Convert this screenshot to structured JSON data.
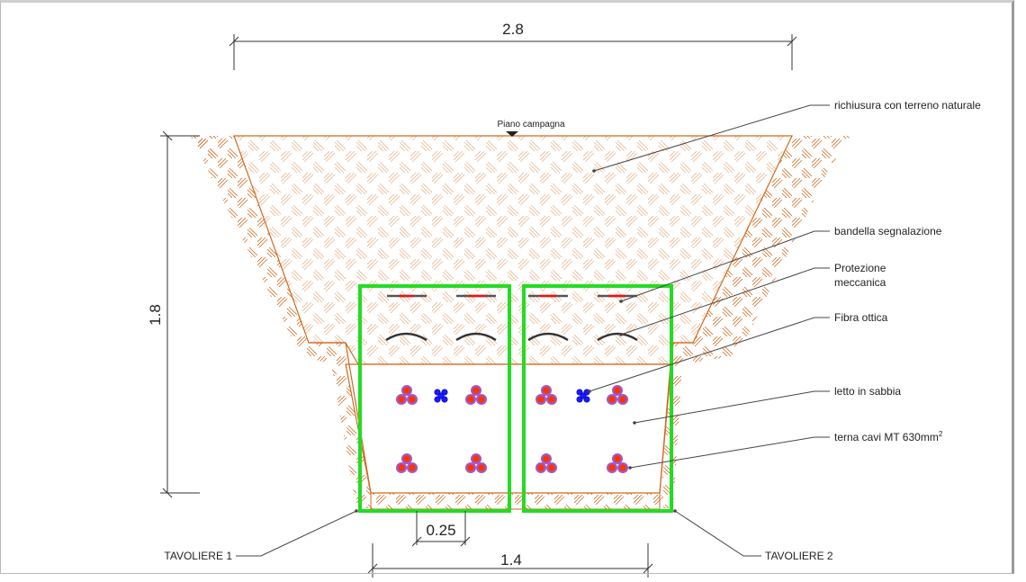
{
  "dimensions": {
    "top_width": "2.8",
    "height": "1.8",
    "bottom_width": "1.4",
    "gap": "0.25"
  },
  "ground_label": "Piano campagna",
  "callouts": {
    "backfill": "richiusura con terreno naturale",
    "warning_tape": "bandella segnalazione",
    "mechanical_protection_line1": "Protezione",
    "mechanical_protection_line2": "meccanica",
    "optical_fiber": "Fibra ottica",
    "sand_bed": "letto in sabbia",
    "cable_triad": "terna cavi MT 630mm",
    "cable_triad_sup": "2"
  },
  "trays": {
    "left": "TAVOLIERE 1",
    "right": "TAVOLIERE 2"
  },
  "colors": {
    "soil": "#d2691e",
    "tray_outline": "#22dd22",
    "cable_core": "#ff3300",
    "cable_sheath": "#9b59d0",
    "fiber": "#1a1aff",
    "tape_red": "#ee1111"
  }
}
